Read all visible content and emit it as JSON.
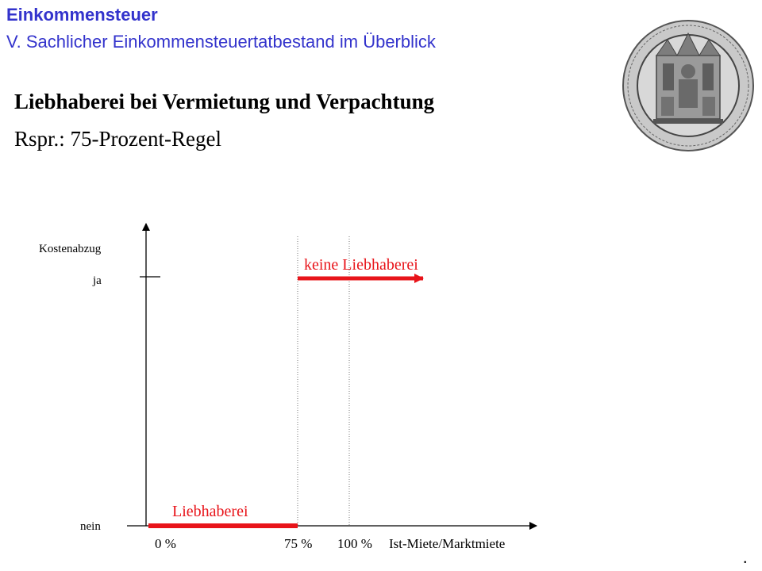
{
  "header": {
    "title": "Einkommensteuer",
    "subtitle": "V. Sachlicher Einkommensteuertatbestand im Überblick"
  },
  "slide": {
    "heading": "Liebhaberei bei Vermietung und Verpachtung",
    "subheading": "Rspr.: 75-Prozent-Regel",
    "trailing_mark": "."
  },
  "diagram": {
    "y_axis_title": "Kostenabzug",
    "y_level_high": "ja",
    "y_level_low": "nein",
    "x_axis_title": "Ist-Miete/Marktmiete",
    "x_ticks": [
      "0 %",
      "75 %",
      "100 %"
    ],
    "region_low_label": "Liebhaberei",
    "region_high_label": "keine Liebhaberei",
    "threshold_percent": 75,
    "reference_percent": 100,
    "colors": {
      "accent": "#e8141a",
      "axis": "#000000",
      "guide": "#777777",
      "header": "#3333cc"
    }
  },
  "seal": {
    "icon": "university-seal-icon"
  }
}
